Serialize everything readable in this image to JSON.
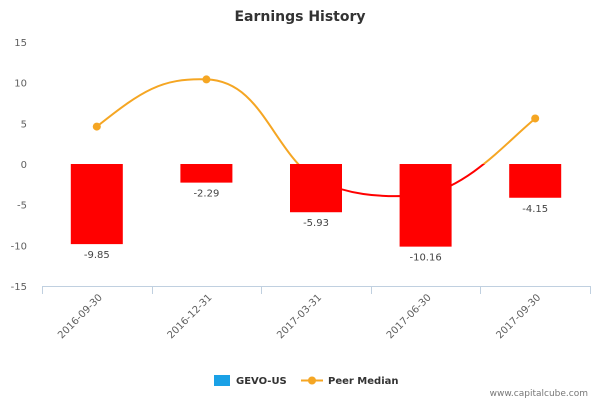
{
  "chart_data": {
    "type": "bar",
    "title": "Earnings History",
    "categories": [
      "2016-09-30",
      "2016-12-31",
      "2017-03-31",
      "2017-06-30",
      "2017-09-30"
    ],
    "ylim": [
      -15,
      15
    ],
    "yticks": [
      15,
      10,
      5,
      0,
      -5,
      -10,
      -15
    ],
    "series": [
      {
        "name": "GEVO-US",
        "type": "bar",
        "values": [
          -9.85,
          -2.29,
          -5.93,
          -10.16,
          -4.15
        ],
        "data_labels": [
          "-9.85",
          "-2.29",
          "-5.93",
          "-10.16",
          "-4.15"
        ],
        "color": "#ff0000",
        "legend_color": "#1aa1e6"
      },
      {
        "name": "Peer Median",
        "type": "line",
        "values": [
          4.6,
          10.4,
          null,
          null,
          5.6
        ],
        "color": "#f5a623",
        "negative_color": "#ff0000"
      }
    ],
    "legend_position": "bottom-center",
    "grid": false
  },
  "credit": "www.capitalcube.com"
}
